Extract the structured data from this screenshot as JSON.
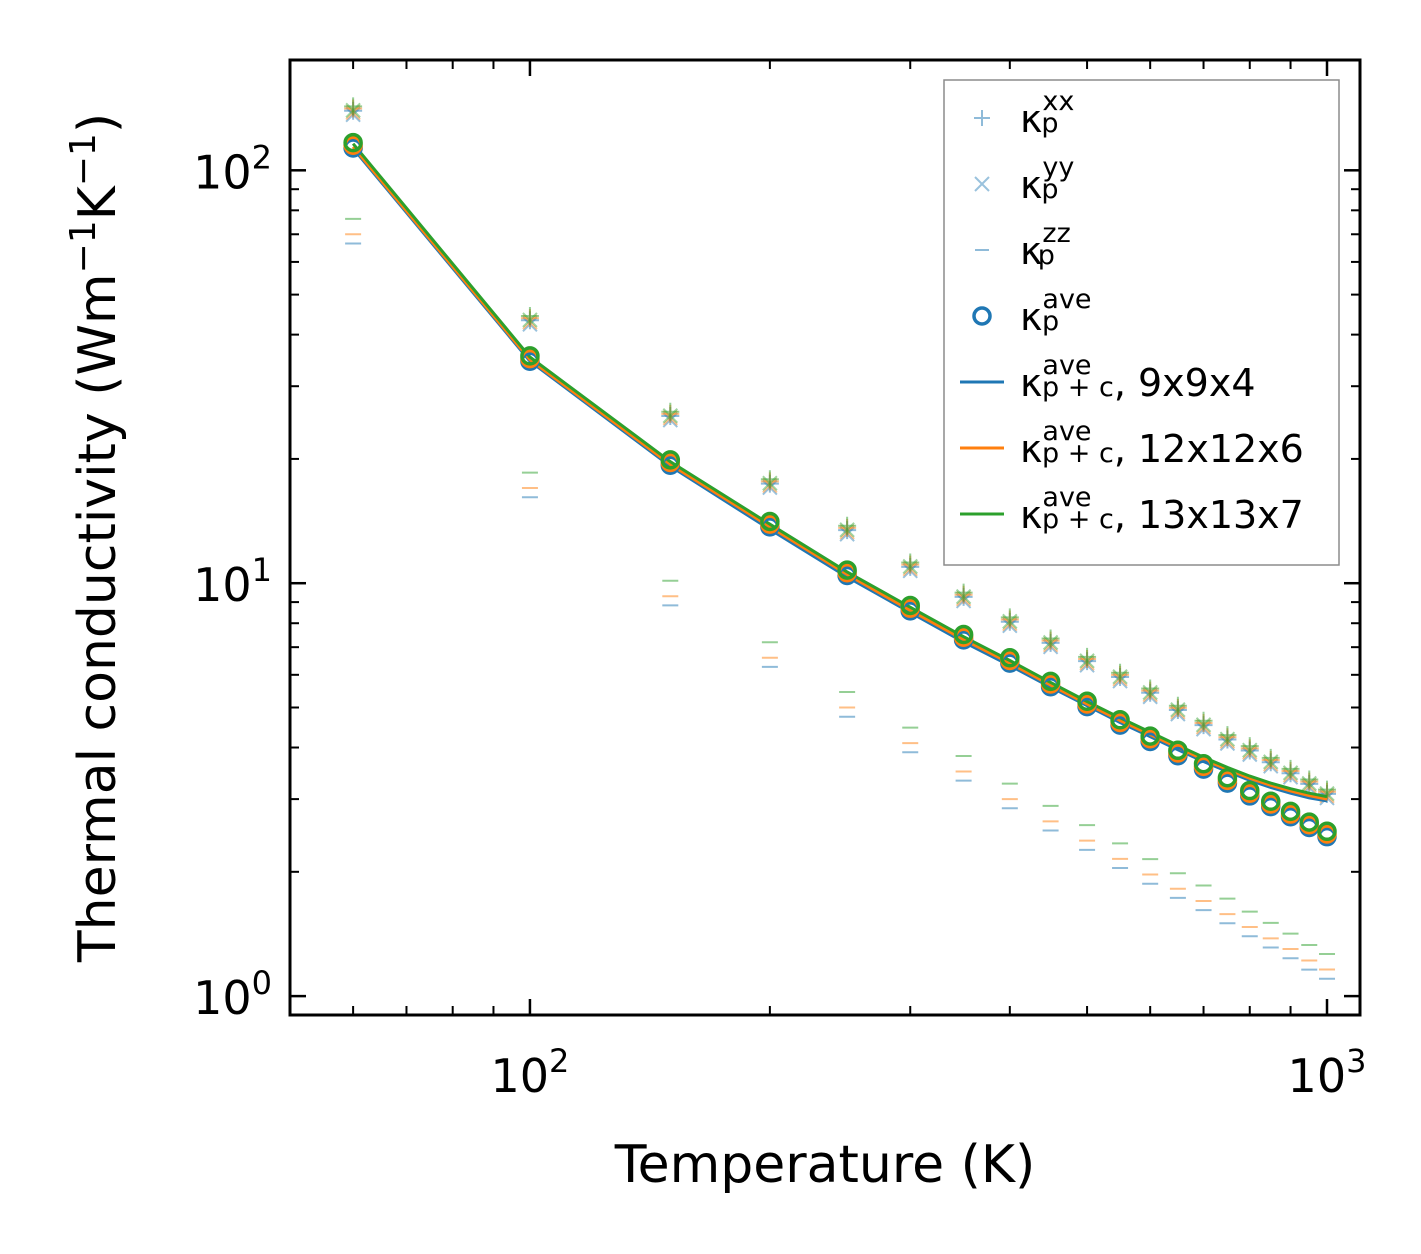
{
  "chart_data": {
    "type": "scatter",
    "xscale": "log",
    "yscale": "log",
    "xlim": [
      50,
      1100
    ],
    "ylim": [
      0.9,
      185
    ],
    "xlabel": "Temperature (K)",
    "ylabel": {
      "main": "Thermal conductivity (Wm",
      "sup1": "−1",
      "mid": "K",
      "sup2": "−1",
      "end": ")"
    },
    "x_ticks": [
      {
        "value": 100,
        "base": "10",
        "exp": "2"
      },
      {
        "value": 1000,
        "base": "10",
        "exp": "3"
      }
    ],
    "y_ticks": [
      {
        "value": 1,
        "base": "10",
        "exp": "0"
      },
      {
        "value": 10,
        "base": "10",
        "exp": "1"
      },
      {
        "value": 100,
        "base": "10",
        "exp": "2"
      }
    ],
    "colors": {
      "blue": "#1f77b4",
      "orange": "#ff7f0e",
      "green": "#2ca02c"
    },
    "temperatures": [
      60,
      100,
      150,
      200,
      250,
      300,
      350,
      400,
      450,
      500,
      550,
      600,
      650,
      700,
      750,
      800,
      850,
      900,
      950,
      1000
    ],
    "kappa_p_xx": [
      140,
      43.5,
      25.5,
      17.5,
      13.5,
      11.0,
      9.3,
      8.1,
      7.2,
      6.5,
      5.95,
      5.45,
      4.95,
      4.55,
      4.2,
      3.95,
      3.7,
      3.48,
      3.28,
      3.1
    ],
    "kappa_p_zz": [
      70,
      17,
      9.3,
      6.6,
      5.0,
      4.1,
      3.5,
      3.0,
      2.65,
      2.38,
      2.15,
      1.97,
      1.82,
      1.7,
      1.58,
      1.47,
      1.38,
      1.3,
      1.22,
      1.16
    ],
    "kappa_p_ave": [
      115,
      35,
      19.6,
      13.9,
      10.6,
      8.7,
      7.4,
      6.5,
      5.7,
      5.1,
      4.6,
      4.2,
      3.88,
      3.6,
      3.33,
      3.1,
      2.92,
      2.76,
      2.6,
      2.47
    ],
    "zz_offsets": {
      "blue": 0.95,
      "orange": 1.0,
      "green": 1.09
    },
    "series": [
      {
        "name": "9x9x4",
        "color_key": "blue",
        "values": [
          113,
          34.5,
          19.2,
          13.5,
          10.35,
          8.5,
          7.2,
          6.32,
          5.6,
          5.05,
          4.6,
          4.25,
          3.95,
          3.7,
          3.5,
          3.33,
          3.2,
          3.1,
          3.02,
          2.97
        ]
      },
      {
        "name": "12x12x6",
        "color_key": "orange",
        "values": [
          114,
          34.8,
          19.4,
          13.7,
          10.5,
          8.6,
          7.3,
          6.4,
          5.67,
          5.1,
          4.65,
          4.3,
          4.0,
          3.74,
          3.54,
          3.37,
          3.24,
          3.14,
          3.06,
          3.0
        ]
      },
      {
        "name": "13x13x7",
        "color_key": "green",
        "values": [
          116,
          35.3,
          19.7,
          13.9,
          10.65,
          8.75,
          7.42,
          6.5,
          5.75,
          5.17,
          4.72,
          4.36,
          4.05,
          3.79,
          3.58,
          3.41,
          3.28,
          3.18,
          3.1,
          3.04
        ]
      }
    ],
    "legend": {
      "position": "top-right",
      "entries": [
        {
          "symbol": "κ",
          "sub": "p",
          "sup": "xx",
          "suffix": "",
          "marker": "plus"
        },
        {
          "symbol": "κ",
          "sub": "p",
          "sup": "yy",
          "suffix": "",
          "marker": "cross"
        },
        {
          "symbol": "κ",
          "sub": "p",
          "sup": "zz",
          "suffix": "",
          "marker": "dash"
        },
        {
          "symbol": "κ",
          "sub": "p",
          "sup": "ave",
          "suffix": "",
          "marker": "circle"
        },
        {
          "symbol": "κ",
          "sub": "p + c",
          "sup": "ave",
          "suffix": ", 9x9x4",
          "marker": "line-blue"
        },
        {
          "symbol": "κ",
          "sub": "p + c",
          "sup": "ave",
          "suffix": ", 12x12x6",
          "marker": "line-orange"
        },
        {
          "symbol": "κ",
          "sub": "p + c",
          "sup": "ave",
          "suffix": ", 13x13x7",
          "marker": "line-green"
        }
      ]
    }
  }
}
